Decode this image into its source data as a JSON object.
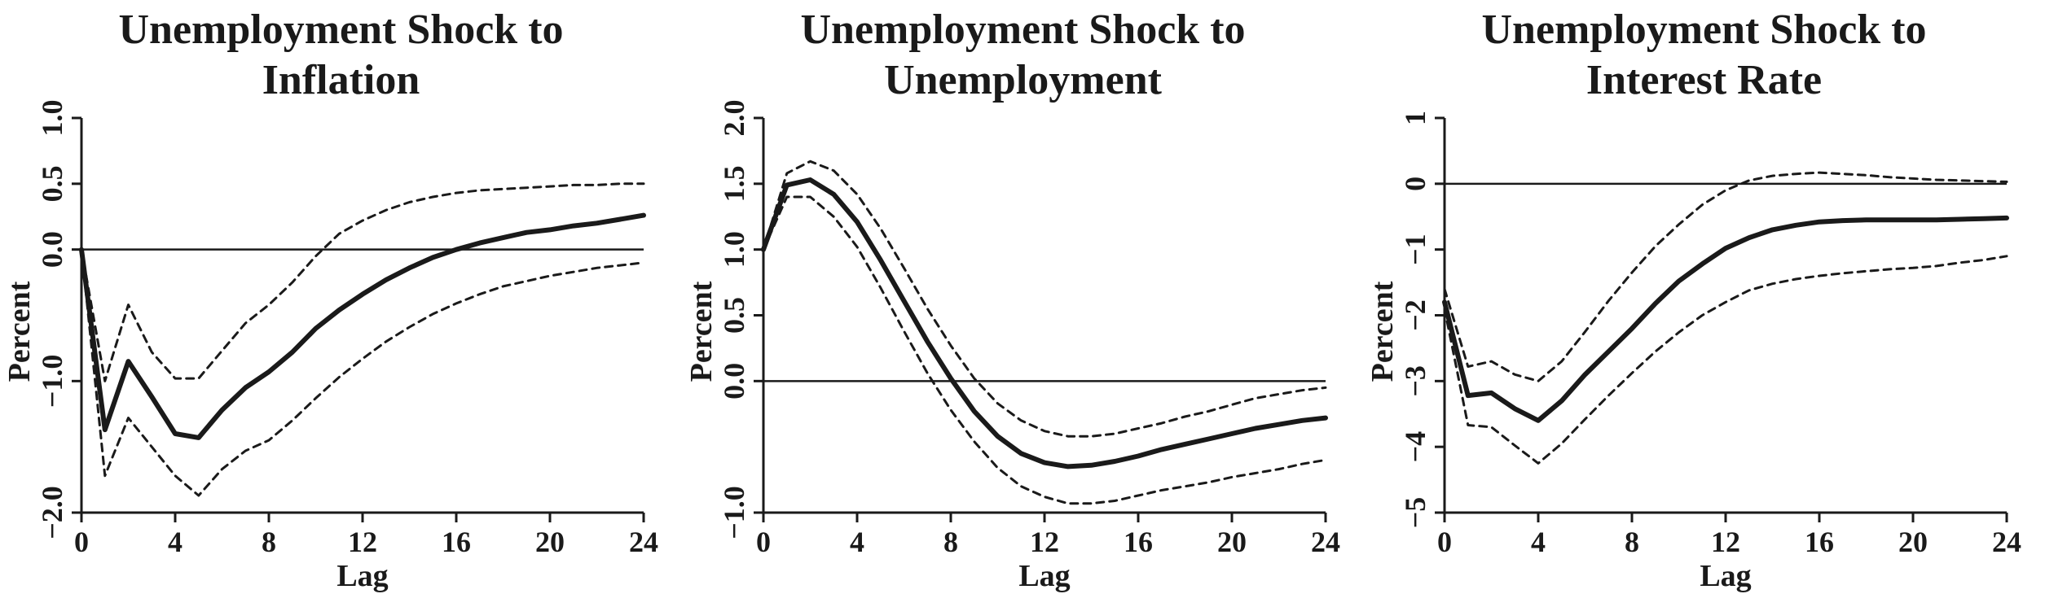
{
  "chart_data": [
    {
      "type": "line",
      "title": "Unemployment Shock to\nInflation",
      "xlabel": "Lag",
      "ylabel": "Percent",
      "xlim": [
        0,
        24
      ],
      "ylim": [
        -2.0,
        1.0
      ],
      "xticks": [
        0,
        4,
        8,
        12,
        16,
        20,
        24
      ],
      "xtick_labels": [
        "0",
        "4",
        "8",
        "12",
        "16",
        "20",
        "24"
      ],
      "yticks": [
        -2.0,
        -1.0,
        0.0,
        0.5,
        1.0
      ],
      "ytick_labels": [
        "−2.0",
        "−1.0",
        "0.0",
        "0.5",
        "1.0"
      ],
      "zero_line": 0,
      "series": [
        {
          "style": "solid",
          "x": [
            0,
            1,
            2,
            3,
            4,
            5,
            6,
            7,
            8,
            9,
            10,
            11,
            12,
            13,
            14,
            15,
            16,
            17,
            18,
            19,
            20,
            21,
            22,
            23,
            24
          ],
          "y": [
            0,
            -1.37,
            -0.85,
            -1.12,
            -1.4,
            -1.43,
            -1.22,
            -1.05,
            -0.93,
            -0.78,
            -0.6,
            -0.46,
            -0.34,
            -0.23,
            -0.14,
            -0.06,
            0.0,
            0.05,
            0.09,
            0.13,
            0.15,
            0.18,
            0.2,
            0.23,
            0.26
          ]
        },
        {
          "style": "dashed",
          "x": [
            0,
            1,
            2,
            3,
            4,
            5,
            6,
            7,
            8,
            9,
            10,
            11,
            12,
            13,
            14,
            15,
            16,
            17,
            18,
            19,
            20,
            21,
            22,
            23,
            24
          ],
          "y": [
            0,
            -1.0,
            -0.42,
            -0.78,
            -0.98,
            -0.98,
            -0.77,
            -0.56,
            -0.42,
            -0.25,
            -0.05,
            0.12,
            0.22,
            0.3,
            0.36,
            0.4,
            0.43,
            0.45,
            0.46,
            0.47,
            0.48,
            0.49,
            0.49,
            0.5,
            0.5
          ]
        },
        {
          "style": "dashed",
          "x": [
            0,
            1,
            2,
            3,
            4,
            5,
            6,
            7,
            8,
            9,
            10,
            11,
            12,
            13,
            14,
            15,
            16,
            17,
            18,
            19,
            20,
            21,
            22,
            23,
            24
          ],
          "y": [
            0,
            -1.72,
            -1.28,
            -1.5,
            -1.72,
            -1.87,
            -1.67,
            -1.53,
            -1.45,
            -1.3,
            -1.13,
            -0.97,
            -0.83,
            -0.7,
            -0.59,
            -0.49,
            -0.41,
            -0.34,
            -0.28,
            -0.24,
            -0.2,
            -0.17,
            -0.14,
            -0.12,
            -0.1
          ]
        }
      ]
    },
    {
      "type": "line",
      "title": "Unemployment Shock to\nUnemployment",
      "xlabel": "Lag",
      "ylabel": "Percent",
      "xlim": [
        0,
        24
      ],
      "ylim": [
        -1.0,
        2.0
      ],
      "xticks": [
        0,
        4,
        8,
        12,
        16,
        20,
        24
      ],
      "xtick_labels": [
        "0",
        "4",
        "8",
        "12",
        "16",
        "20",
        "24"
      ],
      "yticks": [
        -1.0,
        0.0,
        0.5,
        1.0,
        1.5,
        2.0
      ],
      "ytick_labels": [
        "−1.0",
        "0.0",
        "0.5",
        "1.0",
        "1.5",
        "2.0"
      ],
      "zero_line": 0,
      "series": [
        {
          "style": "solid",
          "x": [
            0,
            1,
            2,
            3,
            4,
            5,
            6,
            7,
            8,
            9,
            10,
            11,
            12,
            13,
            14,
            15,
            16,
            17,
            18,
            19,
            20,
            21,
            22,
            23,
            24
          ],
          "y": [
            1.0,
            1.49,
            1.53,
            1.42,
            1.21,
            0.92,
            0.61,
            0.3,
            0.02,
            -0.23,
            -0.42,
            -0.55,
            -0.62,
            -0.65,
            -0.64,
            -0.61,
            -0.57,
            -0.52,
            -0.48,
            -0.44,
            -0.4,
            -0.36,
            -0.33,
            -0.3,
            -0.28
          ]
        },
        {
          "style": "dashed",
          "x": [
            0,
            1,
            2,
            3,
            4,
            5,
            6,
            7,
            8,
            9,
            10,
            11,
            12,
            13,
            14,
            15,
            16,
            17,
            18,
            19,
            20,
            21,
            22,
            23,
            24
          ],
          "y": [
            1.0,
            1.58,
            1.67,
            1.6,
            1.42,
            1.16,
            0.86,
            0.55,
            0.27,
            0.02,
            -0.17,
            -0.3,
            -0.38,
            -0.42,
            -0.42,
            -0.4,
            -0.36,
            -0.32,
            -0.27,
            -0.23,
            -0.18,
            -0.13,
            -0.1,
            -0.07,
            -0.05
          ]
        },
        {
          "style": "dashed",
          "x": [
            0,
            1,
            2,
            3,
            4,
            5,
            6,
            7,
            8,
            9,
            10,
            11,
            12,
            13,
            14,
            15,
            16,
            17,
            18,
            19,
            20,
            21,
            22,
            23,
            24
          ],
          "y": [
            1.0,
            1.4,
            1.4,
            1.25,
            1.02,
            0.71,
            0.38,
            0.06,
            -0.22,
            -0.46,
            -0.66,
            -0.8,
            -0.88,
            -0.93,
            -0.93,
            -0.91,
            -0.87,
            -0.83,
            -0.8,
            -0.77,
            -0.73,
            -0.7,
            -0.67,
            -0.63,
            -0.6
          ]
        }
      ]
    },
    {
      "type": "line",
      "title": "Unemployment Shock to\nInterest Rate",
      "xlabel": "Lag",
      "ylabel": "Percent",
      "xlim": [
        0,
        24
      ],
      "ylim": [
        -5,
        1
      ],
      "xticks": [
        0,
        4,
        8,
        12,
        16,
        20,
        24
      ],
      "xtick_labels": [
        "0",
        "4",
        "8",
        "12",
        "16",
        "20",
        "24"
      ],
      "yticks": [
        -5,
        -4,
        -3,
        -2,
        -1,
        0,
        1
      ],
      "ytick_labels": [
        "−5",
        "−4",
        "−3",
        "−2",
        "−1",
        "0",
        "1"
      ],
      "zero_line": 0,
      "series": [
        {
          "style": "solid",
          "x": [
            0,
            1,
            2,
            3,
            4,
            5,
            6,
            7,
            8,
            9,
            10,
            11,
            12,
            13,
            14,
            15,
            16,
            17,
            18,
            19,
            20,
            21,
            22,
            23,
            24
          ],
          "y": [
            -1.8,
            -3.22,
            -3.18,
            -3.42,
            -3.6,
            -3.3,
            -2.9,
            -2.55,
            -2.2,
            -1.82,
            -1.48,
            -1.22,
            -0.98,
            -0.82,
            -0.7,
            -0.63,
            -0.58,
            -0.56,
            -0.55,
            -0.55,
            -0.55,
            -0.55,
            -0.54,
            -0.53,
            -0.52
          ]
        },
        {
          "style": "dashed",
          "x": [
            0,
            1,
            2,
            3,
            4,
            5,
            6,
            7,
            8,
            9,
            10,
            11,
            12,
            13,
            14,
            15,
            16,
            17,
            18,
            19,
            20,
            21,
            22,
            23,
            24
          ],
          "y": [
            -1.6,
            -2.78,
            -2.7,
            -2.9,
            -3.0,
            -2.7,
            -2.25,
            -1.78,
            -1.35,
            -0.95,
            -0.62,
            -0.32,
            -0.1,
            0.05,
            0.12,
            0.15,
            0.17,
            0.15,
            0.13,
            0.1,
            0.08,
            0.06,
            0.05,
            0.04,
            0.03
          ]
        },
        {
          "style": "dashed",
          "x": [
            0,
            1,
            2,
            3,
            4,
            5,
            6,
            7,
            8,
            9,
            10,
            11,
            12,
            13,
            14,
            15,
            16,
            17,
            18,
            19,
            20,
            21,
            22,
            23,
            24
          ],
          "y": [
            -1.9,
            -3.67,
            -3.7,
            -3.98,
            -4.25,
            -3.95,
            -3.58,
            -3.22,
            -2.88,
            -2.55,
            -2.26,
            -2.0,
            -1.8,
            -1.62,
            -1.52,
            -1.45,
            -1.4,
            -1.36,
            -1.33,
            -1.3,
            -1.28,
            -1.25,
            -1.2,
            -1.16,
            -1.1
          ]
        }
      ]
    }
  ]
}
